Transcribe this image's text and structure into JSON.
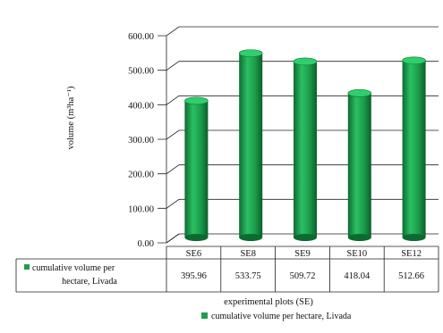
{
  "chart_data": {
    "type": "bar",
    "style": "3d-cylinder-with-data-table",
    "categories": [
      "SE6",
      "SE8",
      "SE9",
      "SE10",
      "SE12"
    ],
    "series": [
      {
        "name": "cumulative volume per hectare, Livada",
        "values": [
          395.96,
          533.75,
          509.72,
          418.04,
          512.66
        ],
        "color": "#1e9f4f"
      }
    ],
    "table": {
      "values_text": [
        "395.96",
        "533.75",
        "509.72",
        "418.04",
        "512.66"
      ]
    },
    "ylabel": "volume (m³ha⁻¹)",
    "xlabel": "experimental plots (SE)",
    "ylim": [
      0,
      600
    ],
    "yticks": [
      "0.00",
      "100.00",
      "200.00",
      "300.00",
      "400.00",
      "500.00",
      "600.00"
    ],
    "grid": true,
    "legend": {
      "position": "bottom",
      "label": "cumulative volume per hectare, Livada"
    },
    "table_series_label": [
      "cumulative volume per",
      "hectare, Livada"
    ]
  }
}
